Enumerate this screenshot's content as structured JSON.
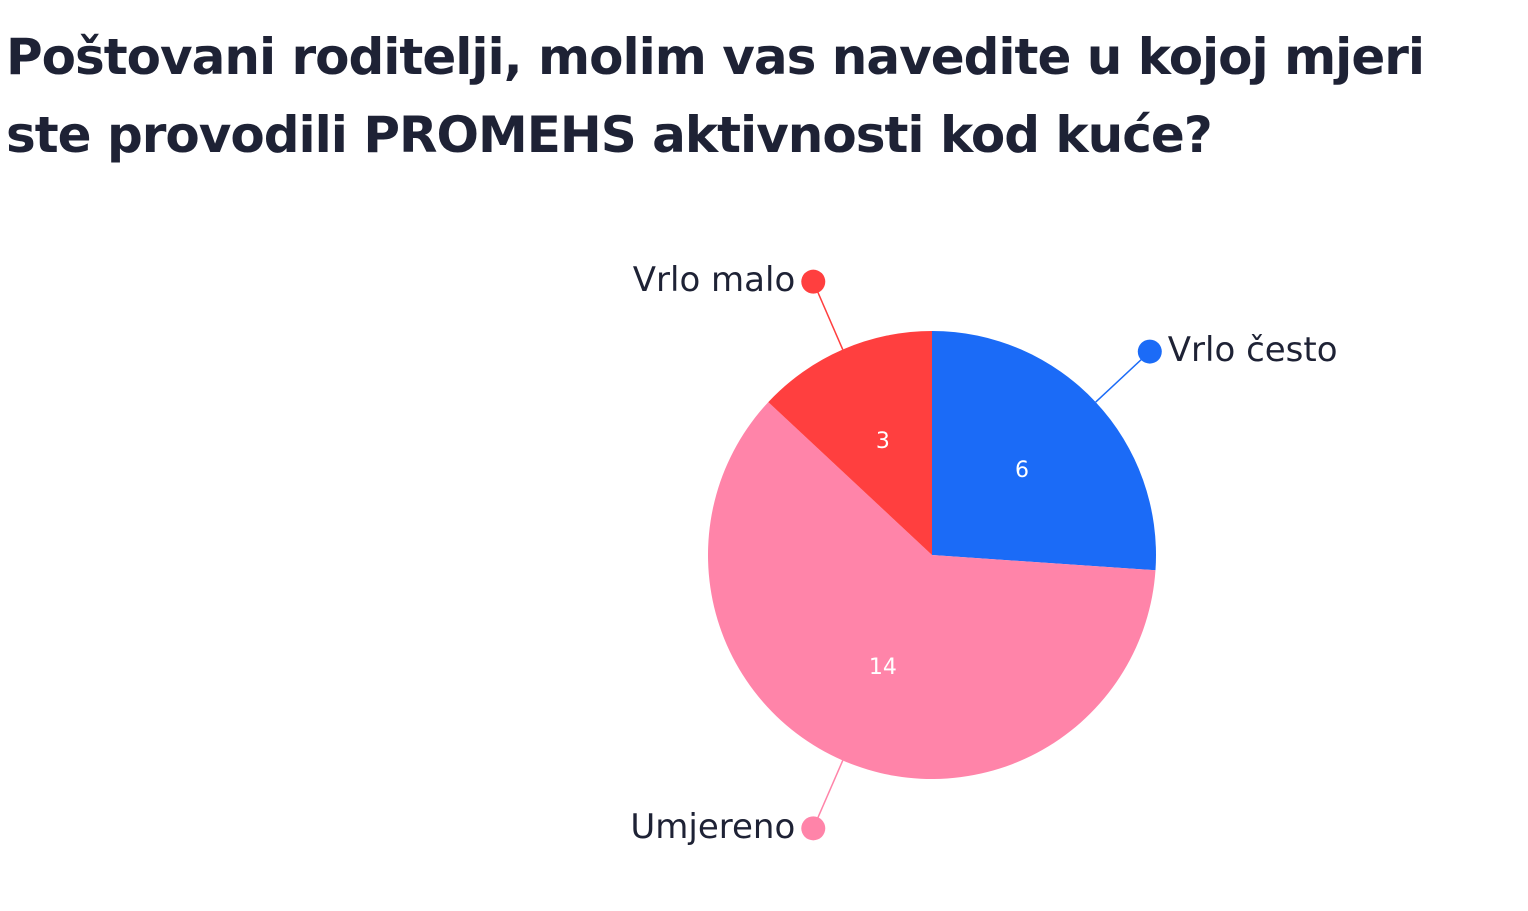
{
  "chart_data": {
    "type": "pie",
    "title": "Poštovani roditelji, molim vas navedite u kojoj mjeri ste provodili PROMEHS aktivnosti kod kuće?",
    "categories": [
      "Vrlo često",
      "Umjereno",
      "Vrlo malo"
    ],
    "values": [
      6,
      14,
      3
    ],
    "colors": [
      "#1b6bf7",
      "#ff84a9",
      "#ff3f3f"
    ]
  }
}
